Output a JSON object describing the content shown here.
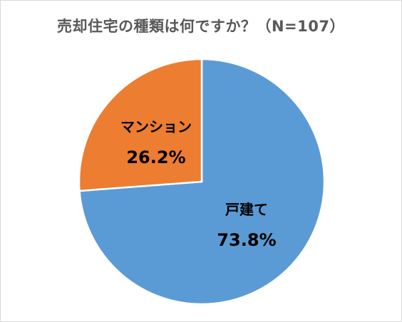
{
  "chart_data": {
    "type": "pie",
    "title": "売却住宅の種類は何ですか？（N=107）",
    "slices": [
      {
        "label": "戸建て",
        "value": 73.8,
        "value_label": "73.8%",
        "color": "#5B9BD5"
      },
      {
        "label": "マンション",
        "value": 26.2,
        "value_label": "26.2%",
        "color": "#ED7D31"
      }
    ],
    "start": "12 o'clock",
    "direction": "clockwise",
    "legend": "none"
  }
}
